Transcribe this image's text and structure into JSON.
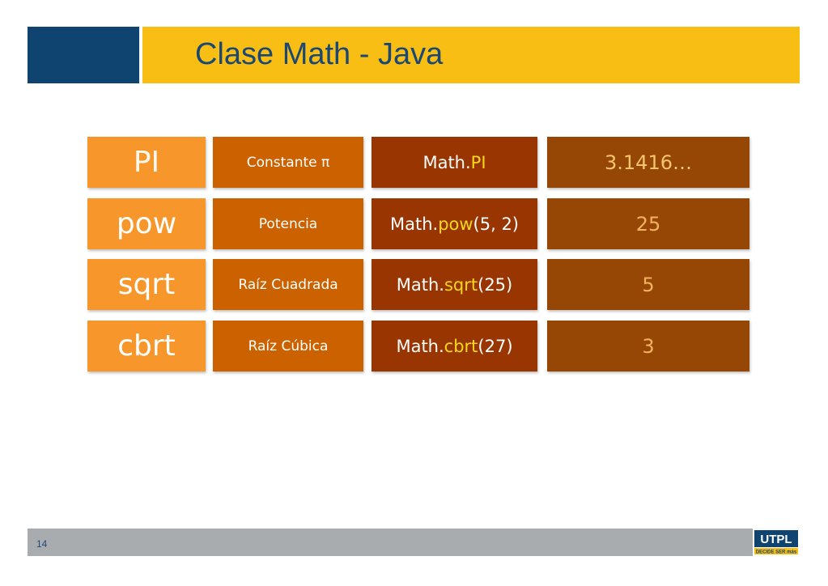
{
  "header": {
    "title": "Clase Math - Java"
  },
  "rows": [
    {
      "name": "PI",
      "description": "Constante π",
      "call_prefix": "Math.",
      "call_method": "PI",
      "call_args": "",
      "result": "3.1416…"
    },
    {
      "name": "pow",
      "description": "Potencia",
      "call_prefix": "Math.",
      "call_method": "pow",
      "call_args": "(5, 2)",
      "result": "25"
    },
    {
      "name": "sqrt",
      "description": "Raíz Cuadrada",
      "call_prefix": "Math.",
      "call_method": "sqrt",
      "call_args": "(25)",
      "result": "5"
    },
    {
      "name": "cbrt",
      "description": "Raíz Cúbica",
      "call_prefix": "Math.",
      "call_method": "cbrt",
      "call_args": "(27)",
      "result": "3"
    }
  ],
  "footer": {
    "page_number": "14",
    "logo_text": "UTPL",
    "logo_tagline": "DECIDE SER más"
  },
  "colors": {
    "header_block": "#0f4471",
    "header_bar": "#f9be14",
    "title": "#1a4773",
    "col_name": "#f7962a",
    "col_description": "#cc6100",
    "col_call": "#993501",
    "col_result": "#974705",
    "method_highlight": "#f8d81a",
    "footer": "#a9acae"
  }
}
